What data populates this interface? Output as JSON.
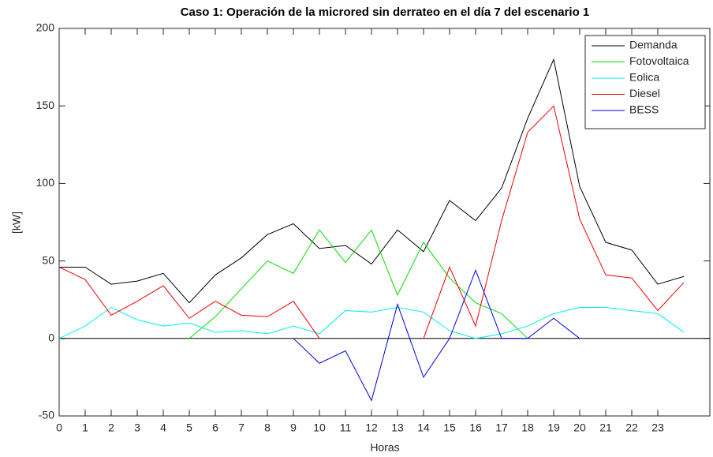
{
  "chart_data": {
    "type": "line",
    "title": "Caso 1: Operación de la microred sin derrateo en el día 7 del escenario 1",
    "x_label": "Horas",
    "y_label": "[kW]",
    "x": [
      0,
      1,
      2,
      3,
      4,
      5,
      6,
      7,
      8,
      9,
      10,
      11,
      12,
      13,
      14,
      15,
      16,
      17,
      18,
      19,
      20,
      21,
      22,
      23,
      24
    ],
    "series": [
      {
        "name": "Demanda",
        "color": "#000000",
        "values": [
          46,
          46,
          35,
          37,
          42,
          23,
          41,
          52,
          67,
          74,
          58,
          60,
          48,
          70,
          56,
          89,
          76,
          97,
          142,
          180,
          98,
          62,
          57,
          35,
          40
        ]
      },
      {
        "name": "Fotovoltaica",
        "color": "#00dd00",
        "values": [
          null,
          null,
          null,
          null,
          null,
          0,
          14,
          32,
          50,
          42,
          70,
          49,
          70,
          28,
          62,
          39,
          23,
          16,
          0,
          null,
          null,
          null,
          null,
          null,
          null
        ]
      },
      {
        "name": "Eolica",
        "color": "#00eeee",
        "values": [
          0,
          8,
          20,
          12,
          8,
          10,
          4,
          5,
          3,
          8,
          3,
          18,
          17,
          20,
          17,
          5,
          0,
          3,
          8,
          16,
          20,
          20,
          18,
          16,
          4
        ]
      },
      {
        "name": "Diesel",
        "color": "#ee0000",
        "values": [
          46,
          38,
          15,
          24,
          34,
          13,
          24,
          15,
          14,
          24,
          0,
          null,
          null,
          null,
          0,
          46,
          8,
          76,
          133,
          150,
          77,
          41,
          39,
          18,
          36
        ]
      },
      {
        "name": "BESS",
        "color": "#0000dd",
        "values": [
          null,
          null,
          null,
          null,
          null,
          null,
          null,
          null,
          null,
          0,
          -16,
          -8,
          -40,
          22,
          -25,
          0,
          44,
          0,
          0,
          13,
          0,
          null,
          null,
          null,
          null
        ]
      }
    ],
    "hline": 0,
    "xlim": [
      0,
      25
    ],
    "xticks": [
      0,
      1,
      2,
      3,
      4,
      5,
      6,
      7,
      8,
      9,
      10,
      11,
      12,
      13,
      14,
      15,
      16,
      17,
      18,
      19,
      20,
      21,
      22,
      23
    ],
    "ylim": [
      -50,
      200
    ],
    "yticks": [
      -50,
      0,
      50,
      100,
      150,
      200
    ],
    "grid": false,
    "legend": "upper right"
  }
}
